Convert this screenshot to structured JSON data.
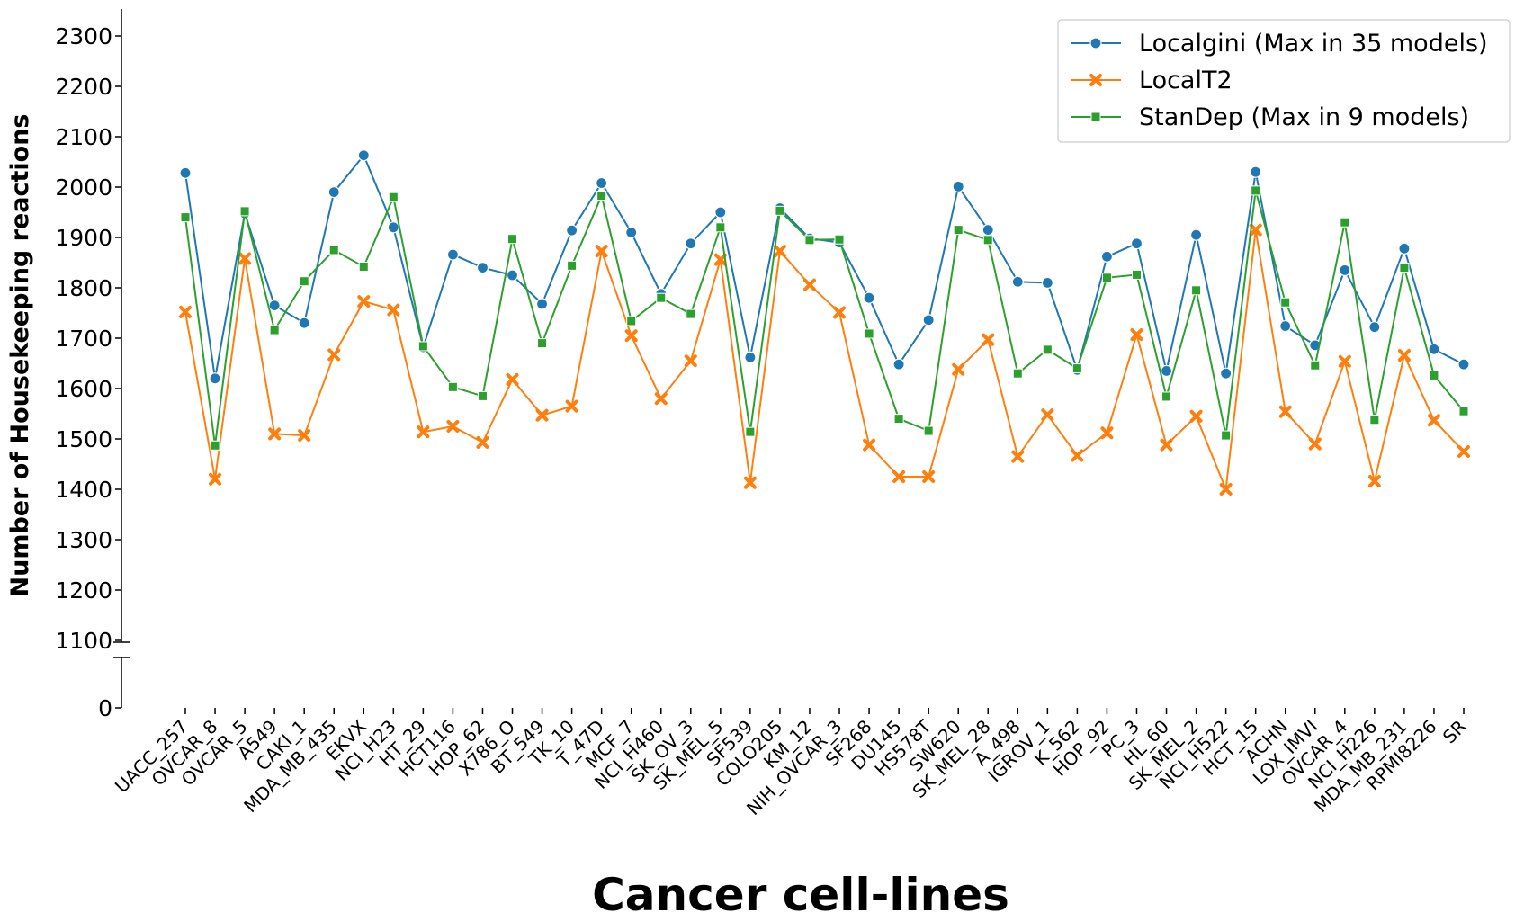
{
  "chart_data": {
    "type": "line",
    "xlabel": "Cancer cell-lines",
    "ylabel": "Number of Housekeeping reactions",
    "yticks_upper": [
      1100,
      1200,
      1300,
      1400,
      1500,
      1600,
      1700,
      1800,
      1900,
      2000,
      2100,
      2200,
      2300
    ],
    "yticks_lower": [
      0
    ],
    "ylim_upper": [
      1100,
      2350
    ],
    "ylim_lower": [
      0,
      100
    ],
    "axis_break": true,
    "grid": false,
    "legend_position": "top-right",
    "categories": [
      "UACC_257",
      "OVCAR_8",
      "OVCAR_5",
      "A549",
      "CAKI_1",
      "MDA_MB_435",
      "EKVX",
      "NCI_H23",
      "HT_29",
      "HCT116",
      "HOP_62",
      "X786_O",
      "BT_549",
      "TK_10",
      "T_47D",
      "MCF_7",
      "NCI_H460",
      "SK_OV_3",
      "SK_MEL_5",
      "SF539",
      "COLO205",
      "KM_12",
      "NIH_OVCAR_3",
      "SF268",
      "DU145",
      "HS578T",
      "SW620",
      "SK_MEL_28",
      "A_498",
      "IGROV_1",
      "K_562",
      "HOP_92",
      "PC_3",
      "HL_60",
      "SK_MEL_2",
      "NCI_H522",
      "HCT_15",
      "ACHN",
      "LOX_IMVI",
      "OVCAR_4",
      "NCI_H226",
      "MDA_MB_231",
      "RPMI8226",
      "SR"
    ],
    "series": [
      {
        "name": "Localgini (Max in 35 models)",
        "color": "#1f77b4",
        "marker": "circle",
        "values": [
          2028,
          1620,
          1948,
          1765,
          1730,
          1990,
          2063,
          1920,
          1682,
          1866,
          1840,
          1825,
          1768,
          1914,
          2008,
          1910,
          1788,
          1888,
          1950,
          1662,
          1958,
          1898,
          1890,
          1780,
          1648,
          1736,
          2001,
          1915,
          1812,
          1810,
          1637,
          1862,
          1888,
          1635,
          1905,
          1630,
          2030,
          1724,
          1686,
          1835,
          1722,
          1878,
          1678,
          1648
        ]
      },
      {
        "name": "LocalT2",
        "color": "#ff7f0e",
        "marker": "x",
        "values": [
          1752,
          1420,
          1858,
          1510,
          1507,
          1667,
          1773,
          1756,
          1514,
          1525,
          1493,
          1618,
          1547,
          1565,
          1873,
          1705,
          1580,
          1655,
          1856,
          1413,
          1873,
          1806,
          1751,
          1488,
          1425,
          1425,
          1638,
          1697,
          1465,
          1548,
          1467,
          1512,
          1707,
          1488,
          1545,
          1400,
          1915,
          1554,
          1490,
          1654,
          1416,
          1666,
          1537,
          1475
        ]
      },
      {
        "name": "StanDep (Max in 9 models)",
        "color": "#2ca02c",
        "marker": "square",
        "values": [
          1940,
          1487,
          1952,
          1716,
          1813,
          1875,
          1842,
          1980,
          1684,
          1603,
          1585,
          1897,
          1690,
          1844,
          1983,
          1734,
          1780,
          1748,
          1920,
          1514,
          1953,
          1895,
          1896,
          1709,
          1540,
          1516,
          1915,
          1895,
          1630,
          1677,
          1640,
          1820,
          1826,
          1584,
          1795,
          1507,
          1993,
          1771,
          1646,
          1930,
          1538,
          1840,
          1626,
          1555
        ]
      }
    ]
  }
}
